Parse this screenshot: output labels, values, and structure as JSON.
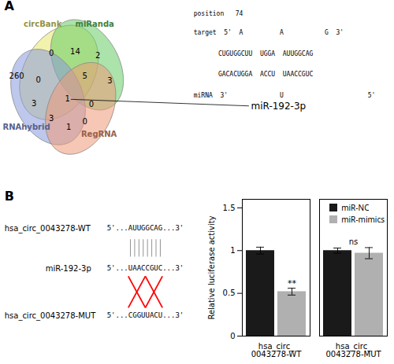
{
  "chart_data": [
    {
      "type": "venn",
      "title": "A",
      "series": [
        {
          "name": "circBank",
          "color": "#e8e86a"
        },
        {
          "name": "miRanda",
          "color": "#66cc66"
        },
        {
          "name": "RNAhybrid",
          "color": "#8899dd"
        },
        {
          "name": "RegRNA",
          "color": "#ee9977"
        }
      ],
      "values": [
        260,
        0,
        14,
        2,
        0,
        5,
        3,
        3,
        1,
        0,
        3,
        1,
        0
      ],
      "annotations": [
        "miR-192-3p",
        "position   74",
        "target  5'  A",
        "A",
        "G  3'",
        "CUGUGGCUU  UGGA  AUUGGCAG",
        "GACACUGGA  ACCU  UAACCGUC",
        "miRNA  3'",
        "U",
        "5'"
      ]
    },
    {
      "type": "diagram",
      "title": "B",
      "color": "red",
      "annotations": [
        "hsa_circ_0043278-WT",
        "5'...AUUGGCAG...3'",
        "miR-192-3p",
        "5'...UAACCGUC...3'",
        "hsa_circ_0043278-MUT",
        "5'...CGGUUACU...3'"
      ]
    },
    {
      "type": "bar",
      "categories": [
        "hsa_circ_0043278-WT",
        "hsa_circ_0043278-MUT"
      ],
      "series": [
        {
          "name": "miR-NC",
          "color": "#1a1a1a",
          "values": [
            1.0,
            1.0
          ],
          "errors": [
            0.04,
            0.03
          ]
        },
        {
          "name": "miR-mimics",
          "color": "#b0b0b0",
          "values": [
            0.52,
            0.97
          ],
          "errors": [
            0.04,
            0.065
          ]
        }
      ],
      "ylabel": "Relative luciferase activity",
      "ylim": [
        0,
        1.6
      ],
      "yticks": [
        0,
        0.5,
        1,
        1.5
      ],
      "legend": "upper right",
      "annotations": [
        {
          "text": "**",
          "category": "hsa_circ_0043278-WT",
          "series": "miR-mimics"
        },
        {
          "text": "ns",
          "category": "hsa_circ_0043278-MUT"
        }
      ]
    }
  ]
}
